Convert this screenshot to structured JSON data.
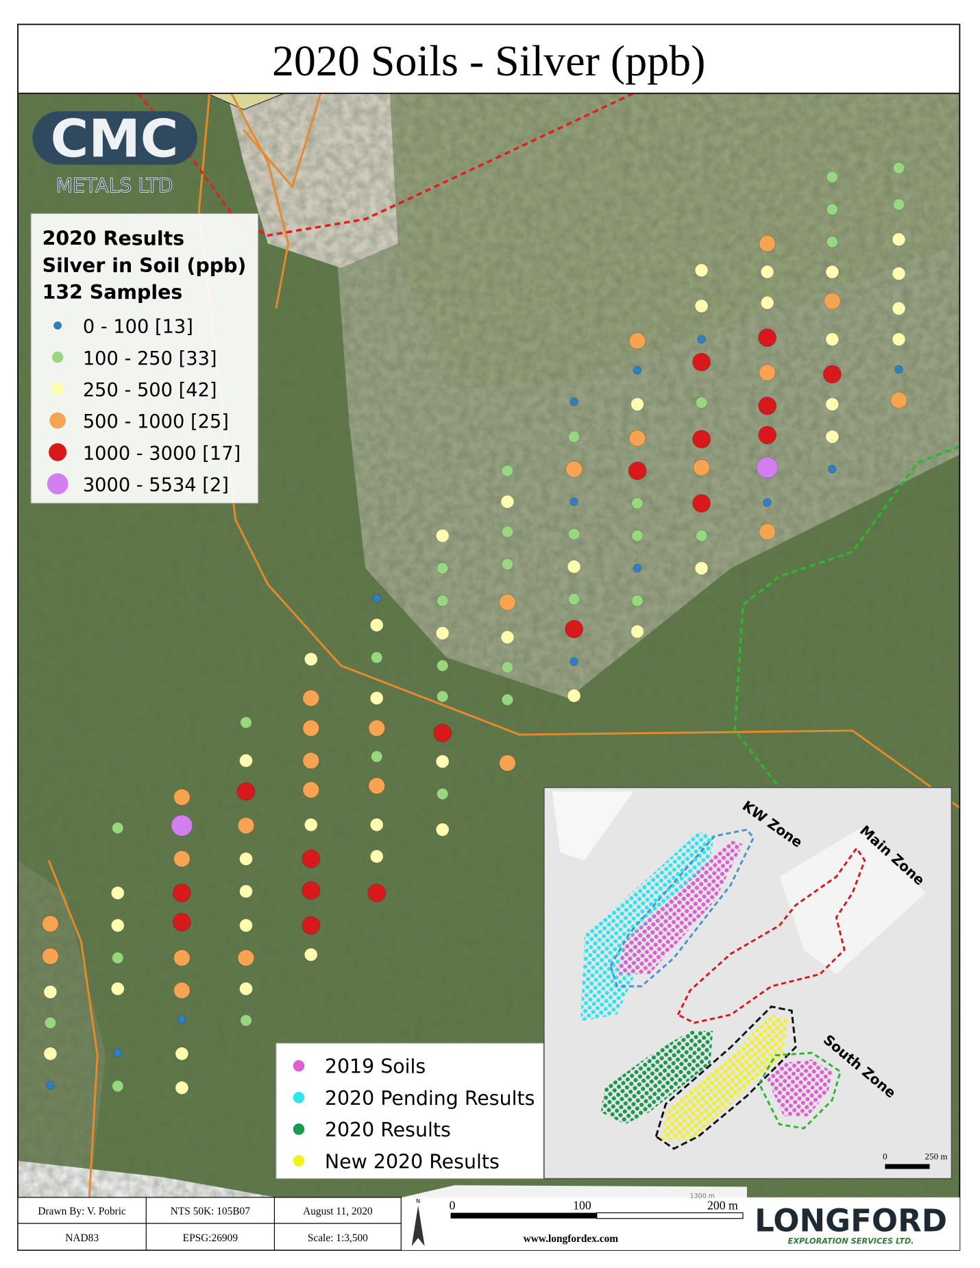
{
  "title": "2020 Soils - Silver (ppb)",
  "logo": {
    "name": "CMC",
    "sub": "METALS LTD"
  },
  "legend": {
    "title": [
      "2020 Results",
      "Silver in Soil (ppb)",
      "132 Samples"
    ],
    "items": [
      {
        "label": "0 - 100 [13]",
        "color": "#2f7fc1"
      },
      {
        "label": "100 - 250 [33]",
        "color": "#98d67f"
      },
      {
        "label": "250 - 500 [42]",
        "color": "#fefcb0"
      },
      {
        "label": "500 - 1000 [25]",
        "color": "#f7a452"
      },
      {
        "label": "1000 - 3000 [17]",
        "color": "#d7191c"
      },
      {
        "label": "3000 - 5534 [2]",
        "color": "#d37ef0"
      }
    ]
  },
  "inset_legend": {
    "items": [
      {
        "label": "2019 Soils",
        "color": "#e05fd0"
      },
      {
        "label": "2020 Pending Results",
        "color": "#2fe6ee"
      },
      {
        "label": "2020 Results",
        "color": "#1a9a50"
      },
      {
        "label": "New 2020 Results",
        "color": "#f2f21c"
      }
    ]
  },
  "inset": {
    "zones": [
      "KW Zone",
      "Main Zone",
      "South Zone"
    ],
    "scale": [
      "0",
      "250 m"
    ]
  },
  "footer": {
    "table": [
      [
        "Drawn By: V. Pobric",
        "NTS 50K: 105B07",
        "August 11, 2020"
      ],
      [
        "NAD83",
        "EPSG:26909",
        "Scale: 1:3,500"
      ]
    ],
    "scale": [
      "0",
      "100",
      "200 m"
    ],
    "scale_note": "1300 m",
    "website": "www.longfordex.com",
    "company": "LONGFORD",
    "company_sub": "EXPLORATION SERVICES LTD."
  }
}
